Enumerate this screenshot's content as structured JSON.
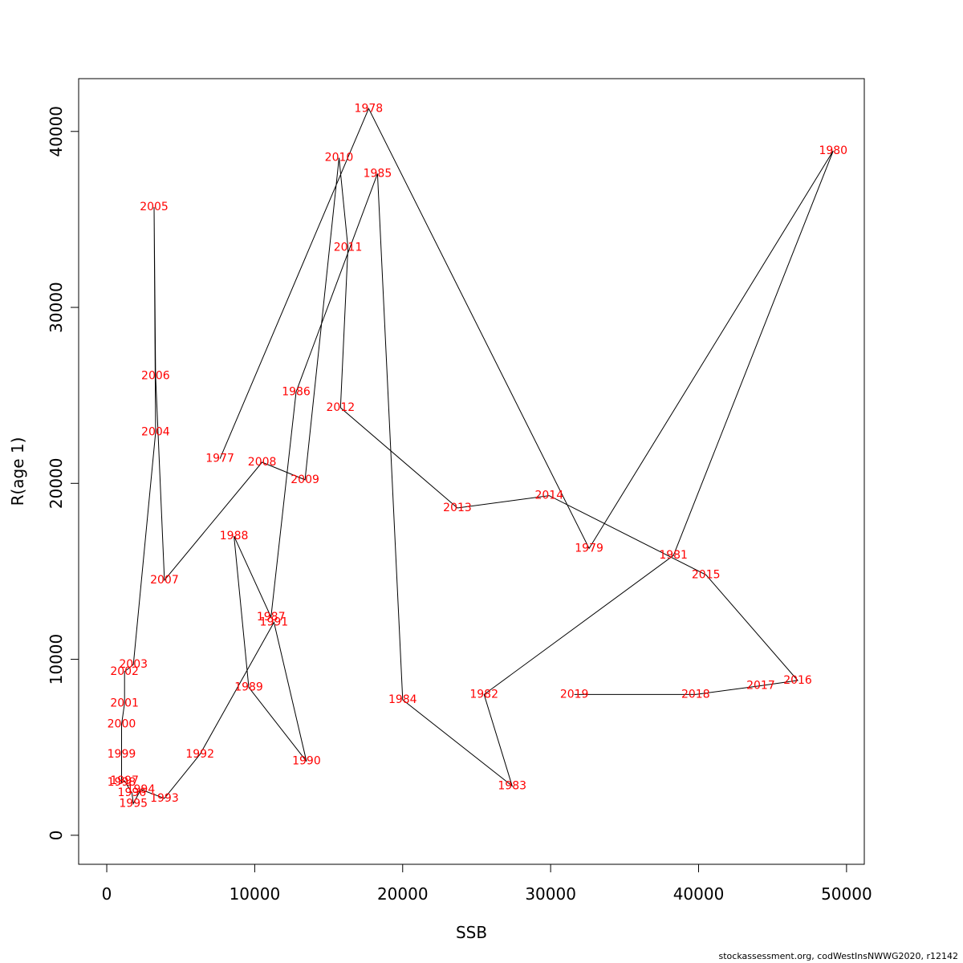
{
  "chart_data": {
    "type": "line",
    "title": "",
    "xlabel": "SSB",
    "ylabel": "R(age 1)",
    "xlim": [
      -1900,
      51200
    ],
    "ylim": [
      -1650,
      43000
    ],
    "xticks": [
      0,
      10000,
      20000,
      30000,
      40000,
      50000
    ],
    "yticks": [
      0,
      10000,
      20000,
      30000,
      40000
    ],
    "xtick_labels": [
      "0",
      "10000",
      "20000",
      "30000",
      "40000",
      "50000"
    ],
    "ytick_labels": [
      "0",
      "10000",
      "20000",
      "30000",
      "40000"
    ],
    "line_color": "#000000",
    "label_color": "#ff0000",
    "points": [
      {
        "year": "1977",
        "ssb": 7650,
        "r": 21400
      },
      {
        "year": "1978",
        "ssb": 17700,
        "r": 41300
      },
      {
        "year": "1979",
        "ssb": 32600,
        "r": 16300
      },
      {
        "year": "1980",
        "ssb": 49100,
        "r": 38900
      },
      {
        "year": "1981",
        "ssb": 38300,
        "r": 15900
      },
      {
        "year": "1982",
        "ssb": 25500,
        "r": 8000
      },
      {
        "year": "1983",
        "ssb": 27400,
        "r": 2800
      },
      {
        "year": "1984",
        "ssb": 20000,
        "r": 7700
      },
      {
        "year": "1985",
        "ssb": 18300,
        "r": 37600
      },
      {
        "year": "1986",
        "ssb": 12800,
        "r": 25200
      },
      {
        "year": "1987",
        "ssb": 11100,
        "r": 12400
      },
      {
        "year": "1988",
        "ssb": 8600,
        "r": 17000
      },
      {
        "year": "1989",
        "ssb": 9600,
        "r": 8400
      },
      {
        "year": "1990",
        "ssb": 13500,
        "r": 4200
      },
      {
        "year": "1991",
        "ssb": 11300,
        "r": 12100
      },
      {
        "year": "1992",
        "ssb": 6300,
        "r": 4600
      },
      {
        "year": "1993",
        "ssb": 3900,
        "r": 2100
      },
      {
        "year": "1994",
        "ssb": 2300,
        "r": 2600
      },
      {
        "year": "1995",
        "ssb": 1800,
        "r": 1800
      },
      {
        "year": "1996",
        "ssb": 1700,
        "r": 2400
      },
      {
        "year": "1997",
        "ssb": 1200,
        "r": 3100
      },
      {
        "year": "1998",
        "ssb": 1000,
        "r": 3000
      },
      {
        "year": "1999",
        "ssb": 1000,
        "r": 4600
      },
      {
        "year": "2000",
        "ssb": 1000,
        "r": 6300
      },
      {
        "year": "2001",
        "ssb": 1200,
        "r": 7500
      },
      {
        "year": "2002",
        "ssb": 1200,
        "r": 9300
      },
      {
        "year": "2003",
        "ssb": 1800,
        "r": 9700
      },
      {
        "year": "2004",
        "ssb": 3300,
        "r": 22900
      },
      {
        "year": "2005",
        "ssb": 3200,
        "r": 35700
      },
      {
        "year": "2006",
        "ssb": 3300,
        "r": 26100
      },
      {
        "year": "2007",
        "ssb": 3900,
        "r": 14500
      },
      {
        "year": "2008",
        "ssb": 10500,
        "r": 21200
      },
      {
        "year": "2009",
        "ssb": 13400,
        "r": 20200
      },
      {
        "year": "2010",
        "ssb": 15700,
        "r": 38500
      },
      {
        "year": "2011",
        "ssb": 16300,
        "r": 33400
      },
      {
        "year": "2012",
        "ssb": 15800,
        "r": 24300
      },
      {
        "year": "2013",
        "ssb": 23700,
        "r": 18600
      },
      {
        "year": "2014",
        "ssb": 29900,
        "r": 19300
      },
      {
        "year": "2015",
        "ssb": 40500,
        "r": 14800
      },
      {
        "year": "2016",
        "ssb": 46700,
        "r": 8800
      },
      {
        "year": "2017",
        "ssb": 44200,
        "r": 8500
      },
      {
        "year": "2018",
        "ssb": 39800,
        "r": 8000
      },
      {
        "year": "2019",
        "ssb": 31600,
        "r": 8000
      }
    ]
  },
  "footer": {
    "credit": "stockassessment.org, codWestInsNWWG2020, r12142"
  }
}
